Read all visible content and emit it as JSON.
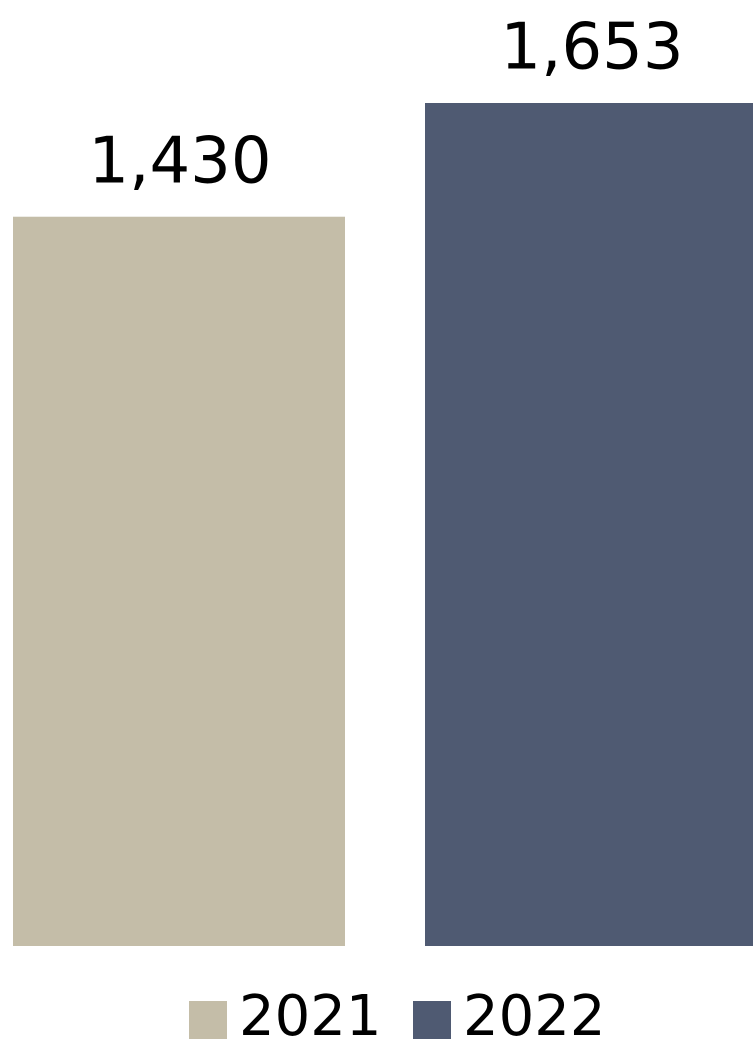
{
  "chart_data": {
    "type": "bar",
    "categories": [
      null
    ],
    "series": [
      {
        "name": "2021",
        "color": "#c4bda8",
        "values": [
          1430
        ],
        "value_labels": [
          "1,430"
        ]
      },
      {
        "name": "2022",
        "color": "#4f5a72",
        "values": [
          1653
        ],
        "value_labels": [
          "1,653"
        ]
      }
    ],
    "legend": "bottom"
  }
}
